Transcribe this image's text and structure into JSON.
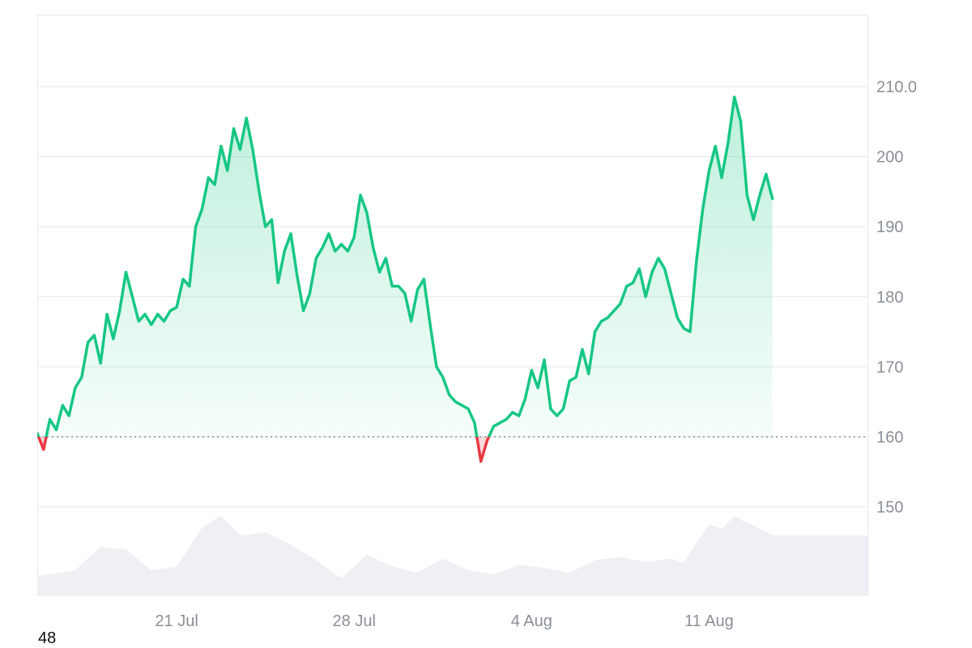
{
  "chart_data": {
    "type": "area",
    "title": "",
    "xlabel": "",
    "ylabel": "",
    "baseline": 160,
    "ylim": [
      140,
      220
    ],
    "y_ticks": [
      150,
      160,
      170,
      180,
      190,
      200,
      210
    ],
    "y_tick_labels": [
      "150",
      "160",
      "170",
      "180",
      "190",
      "200",
      "210.0"
    ],
    "x_ticks": [
      "21 Jul",
      "28 Jul",
      "4 Aug",
      "11 Aug"
    ],
    "x_tick_positions": [
      "2025-07-21",
      "2025-07-28",
      "2025-08-04",
      "2025-08-11"
    ],
    "xlim": [
      "2025-07-15T12:00",
      "2025-08-17T06:00"
    ],
    "grid": true,
    "colors": {
      "up": "#16c784",
      "down": "#ea3943",
      "volume": "#eef0f3",
      "grid": "#e6e8ec"
    },
    "price_points": [
      [
        "2025-07-15T12:00",
        160.5
      ],
      [
        "2025-07-15T18:00",
        158.2
      ],
      [
        "2025-07-16T00:00",
        162.5
      ],
      [
        "2025-07-16T06:00",
        161.0
      ],
      [
        "2025-07-16T12:00",
        164.5
      ],
      [
        "2025-07-16T18:00",
        163.0
      ],
      [
        "2025-07-17T00:00",
        167.0
      ],
      [
        "2025-07-17T06:00",
        168.5
      ],
      [
        "2025-07-17T12:00",
        173.5
      ],
      [
        "2025-07-17T18:00",
        174.5
      ],
      [
        "2025-07-18T00:00",
        170.5
      ],
      [
        "2025-07-18T06:00",
        177.5
      ],
      [
        "2025-07-18T12:00",
        174.0
      ],
      [
        "2025-07-18T18:00",
        178.0
      ],
      [
        "2025-07-19T00:00",
        183.5
      ],
      [
        "2025-07-19T06:00",
        180.0
      ],
      [
        "2025-07-19T12:00",
        176.5
      ],
      [
        "2025-07-19T18:00",
        177.5
      ],
      [
        "2025-07-20T00:00",
        176.0
      ],
      [
        "2025-07-20T06:00",
        177.5
      ],
      [
        "2025-07-20T12:00",
        176.5
      ],
      [
        "2025-07-20T18:00",
        178.0
      ],
      [
        "2025-07-21T00:00",
        178.5
      ],
      [
        "2025-07-21T06:00",
        182.5
      ],
      [
        "2025-07-21T12:00",
        181.5
      ],
      [
        "2025-07-21T18:00",
        190.0
      ],
      [
        "2025-07-22T00:00",
        192.5
      ],
      [
        "2025-07-22T06:00",
        197.0
      ],
      [
        "2025-07-22T12:00",
        196.0
      ],
      [
        "2025-07-22T18:00",
        201.5
      ],
      [
        "2025-07-23T00:00",
        198.0
      ],
      [
        "2025-07-23T06:00",
        204.0
      ],
      [
        "2025-07-23T12:00",
        201.0
      ],
      [
        "2025-07-23T18:00",
        205.5
      ],
      [
        "2025-07-24T00:00",
        201.0
      ],
      [
        "2025-07-24T06:00",
        195.0
      ],
      [
        "2025-07-24T12:00",
        190.0
      ],
      [
        "2025-07-24T18:00",
        191.0
      ],
      [
        "2025-07-25T00:00",
        182.0
      ],
      [
        "2025-07-25T06:00",
        186.5
      ],
      [
        "2025-07-25T12:00",
        189.0
      ],
      [
        "2025-07-25T18:00",
        183.0
      ],
      [
        "2025-07-26T00:00",
        178.0
      ],
      [
        "2025-07-26T06:00",
        180.5
      ],
      [
        "2025-07-26T12:00",
        185.5
      ],
      [
        "2025-07-26T18:00",
        187.0
      ],
      [
        "2025-07-27T00:00",
        189.0
      ],
      [
        "2025-07-27T06:00",
        186.5
      ],
      [
        "2025-07-27T12:00",
        187.5
      ],
      [
        "2025-07-27T18:00",
        186.5
      ],
      [
        "2025-07-28T00:00",
        188.5
      ],
      [
        "2025-07-28T06:00",
        194.5
      ],
      [
        "2025-07-28T12:00",
        192.0
      ],
      [
        "2025-07-28T18:00",
        187.0
      ],
      [
        "2025-07-29T00:00",
        183.5
      ],
      [
        "2025-07-29T06:00",
        185.5
      ],
      [
        "2025-07-29T12:00",
        181.5
      ],
      [
        "2025-07-29T18:00",
        181.5
      ],
      [
        "2025-07-30T00:00",
        180.5
      ],
      [
        "2025-07-30T06:00",
        176.5
      ],
      [
        "2025-07-30T12:00",
        181.0
      ],
      [
        "2025-07-30T18:00",
        182.5
      ],
      [
        "2025-07-31T00:00",
        176.0
      ],
      [
        "2025-07-31T06:00",
        170.0
      ],
      [
        "2025-07-31T12:00",
        168.5
      ],
      [
        "2025-07-31T18:00",
        166.0
      ],
      [
        "2025-08-01T00:00",
        165.0
      ],
      [
        "2025-08-01T06:00",
        164.5
      ],
      [
        "2025-08-01T12:00",
        164.0
      ],
      [
        "2025-08-01T18:00",
        162.0
      ],
      [
        "2025-08-02T00:00",
        156.5
      ],
      [
        "2025-08-02T06:00",
        159.5
      ],
      [
        "2025-08-02T12:00",
        161.5
      ],
      [
        "2025-08-02T18:00",
        162.0
      ],
      [
        "2025-08-03T00:00",
        162.5
      ],
      [
        "2025-08-03T06:00",
        163.5
      ],
      [
        "2025-08-03T12:00",
        163.0
      ],
      [
        "2025-08-03T18:00",
        165.5
      ],
      [
        "2025-08-04T00:00",
        169.5
      ],
      [
        "2025-08-04T06:00",
        167.0
      ],
      [
        "2025-08-04T12:00",
        171.0
      ],
      [
        "2025-08-04T18:00",
        164.0
      ],
      [
        "2025-08-05T00:00",
        163.0
      ],
      [
        "2025-08-05T06:00",
        164.0
      ],
      [
        "2025-08-05T12:00",
        168.0
      ],
      [
        "2025-08-05T18:00",
        168.5
      ],
      [
        "2025-08-06T00:00",
        172.5
      ],
      [
        "2025-08-06T06:00",
        169.0
      ],
      [
        "2025-08-06T12:00",
        175.0
      ],
      [
        "2025-08-06T18:00",
        176.5
      ],
      [
        "2025-08-07T00:00",
        177.0
      ],
      [
        "2025-08-07T06:00",
        178.0
      ],
      [
        "2025-08-07T12:00",
        179.0
      ],
      [
        "2025-08-07T18:00",
        181.5
      ],
      [
        "2025-08-08T00:00",
        182.0
      ],
      [
        "2025-08-08T06:00",
        184.0
      ],
      [
        "2025-08-08T12:00",
        180.0
      ],
      [
        "2025-08-08T18:00",
        183.5
      ],
      [
        "2025-08-09T00:00",
        185.5
      ],
      [
        "2025-08-09T06:00",
        184.0
      ],
      [
        "2025-08-09T12:00",
        180.5
      ],
      [
        "2025-08-09T18:00",
        177.0
      ],
      [
        "2025-08-10T00:00",
        175.5
      ],
      [
        "2025-08-10T06:00",
        175.0
      ],
      [
        "2025-08-10T12:00",
        185.0
      ],
      [
        "2025-08-10T18:00",
        192.5
      ],
      [
        "2025-08-11T00:00",
        198.0
      ],
      [
        "2025-08-11T06:00",
        201.5
      ],
      [
        "2025-08-11T12:00",
        197.0
      ],
      [
        "2025-08-11T18:00",
        202.0
      ],
      [
        "2025-08-12T00:00",
        208.5
      ],
      [
        "2025-08-12T06:00",
        205.0
      ],
      [
        "2025-08-12T12:00",
        194.5
      ],
      [
        "2025-08-12T18:00",
        191.0
      ],
      [
        "2025-08-13T00:00",
        194.5
      ],
      [
        "2025-08-13T06:00",
        197.5
      ],
      [
        "2025-08-13T12:00",
        194.0
      ]
    ],
    "volume_points": [
      [
        "2025-07-15T12:00",
        0.18
      ],
      [
        "2025-07-17T00:00",
        0.25
      ],
      [
        "2025-07-18T00:00",
        0.55
      ],
      [
        "2025-07-19T00:00",
        0.52
      ],
      [
        "2025-07-20T00:00",
        0.25
      ],
      [
        "2025-07-21T00:00",
        0.3
      ],
      [
        "2025-07-22T00:00",
        0.8
      ],
      [
        "2025-07-22T18:00",
        0.95
      ],
      [
        "2025-07-23T12:00",
        0.7
      ],
      [
        "2025-07-24T12:00",
        0.74
      ],
      [
        "2025-07-25T12:00",
        0.58
      ],
      [
        "2025-07-26T12:00",
        0.38
      ],
      [
        "2025-07-27T12:00",
        0.15
      ],
      [
        "2025-07-28T12:00",
        0.45
      ],
      [
        "2025-07-29T12:00",
        0.3
      ],
      [
        "2025-07-30T12:00",
        0.22
      ],
      [
        "2025-07-31T12:00",
        0.4
      ],
      [
        "2025-08-01T12:00",
        0.25
      ],
      [
        "2025-08-02T12:00",
        0.2
      ],
      [
        "2025-08-03T12:00",
        0.32
      ],
      [
        "2025-08-04T12:00",
        0.28
      ],
      [
        "2025-08-05T12:00",
        0.22
      ],
      [
        "2025-08-06T12:00",
        0.38
      ],
      [
        "2025-08-07T12:00",
        0.42
      ],
      [
        "2025-08-08T12:00",
        0.36
      ],
      [
        "2025-08-09T12:00",
        0.4
      ],
      [
        "2025-08-10T00:00",
        0.35
      ],
      [
        "2025-08-10T12:00",
        0.6
      ],
      [
        "2025-08-11T00:00",
        0.85
      ],
      [
        "2025-08-11T12:00",
        0.78
      ],
      [
        "2025-08-12T00:00",
        0.95
      ],
      [
        "2025-08-13T12:00",
        0.7
      ]
    ]
  },
  "footer": {
    "number": "48"
  }
}
